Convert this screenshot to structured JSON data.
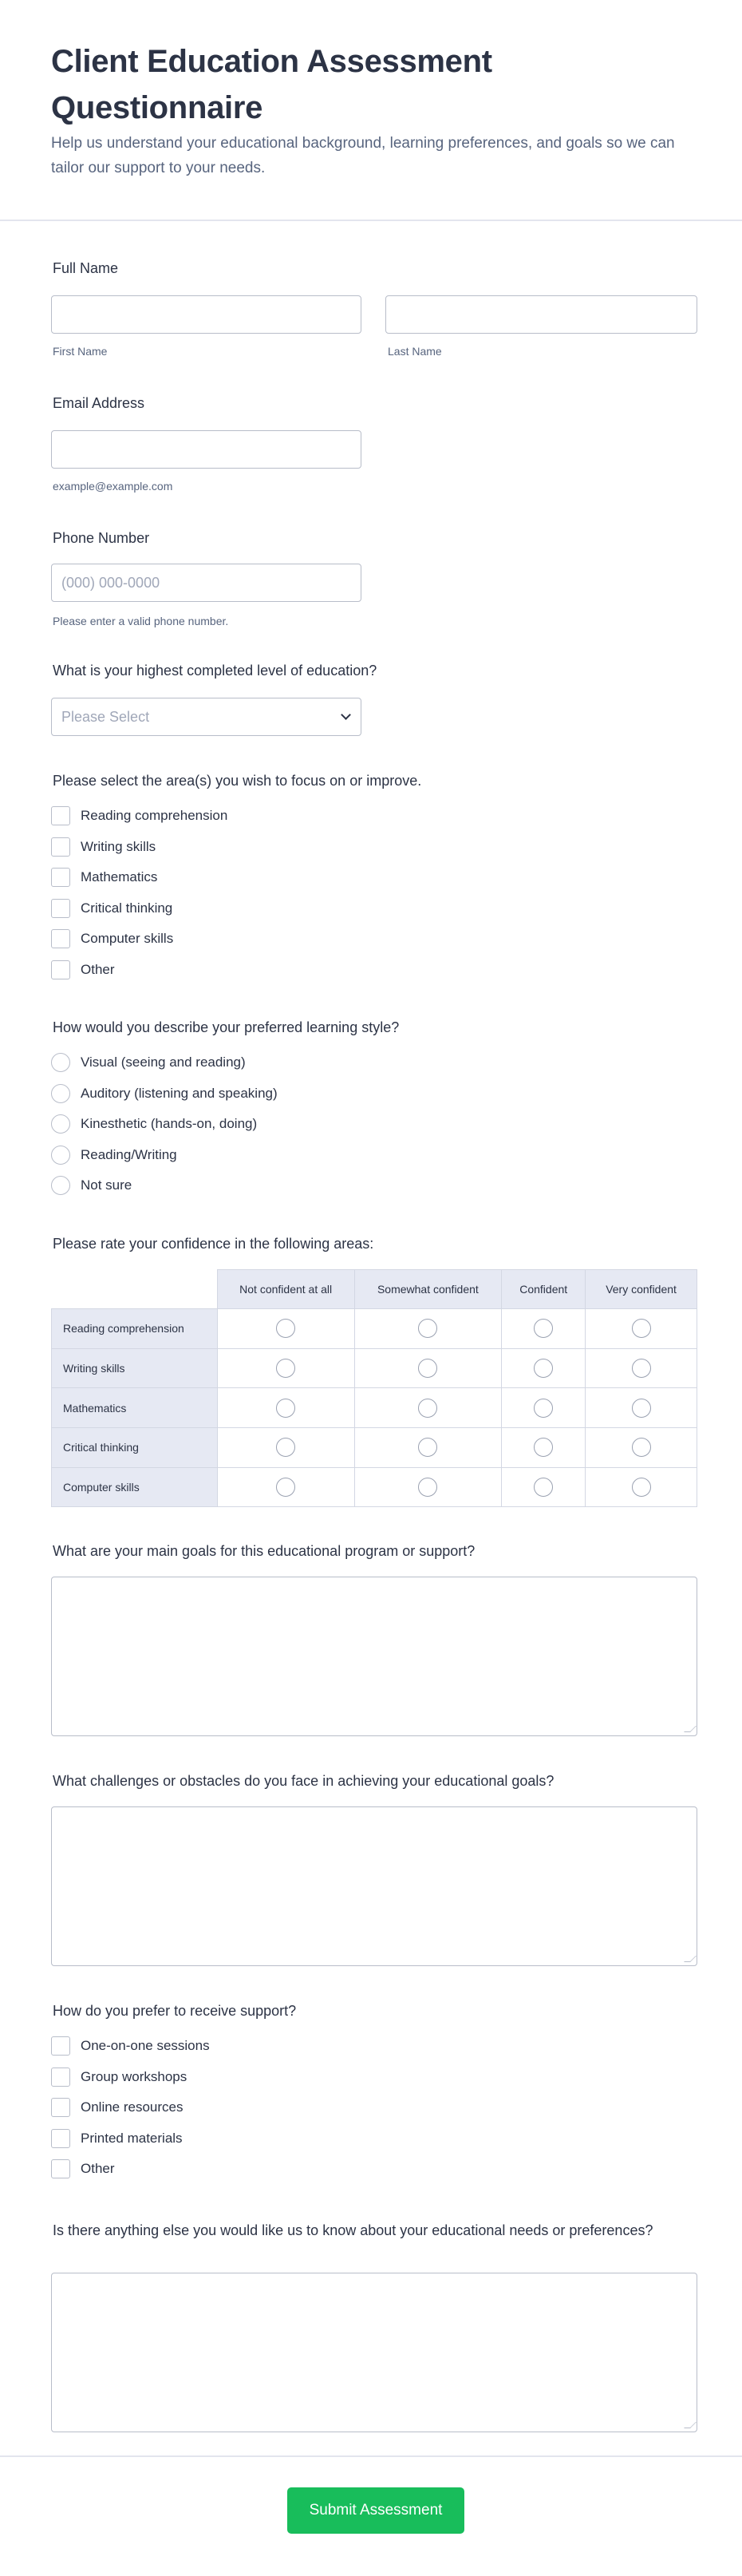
{
  "header": {
    "title": "Client Education Assessment Questionnaire",
    "subtitle": "Help us understand your educational background, learning preferences, and goals so we can tailor our support to your needs."
  },
  "full_name": {
    "label": "Full Name",
    "first_sublabel": "First Name",
    "last_sublabel": "Last Name",
    "first_value": "",
    "last_value": ""
  },
  "email": {
    "label": "Email Address",
    "sublabel": "example@example.com",
    "value": ""
  },
  "phone": {
    "label": "Phone Number",
    "placeholder": "(000) 000-0000",
    "sublabel": "Please enter a valid phone number."
  },
  "education": {
    "label": "What is your highest completed level of education?",
    "selected": "Please Select"
  },
  "focus": {
    "label": "Please select the area(s) you wish to focus on or improve.",
    "options": [
      "Reading comprehension",
      "Writing skills",
      "Mathematics",
      "Critical thinking",
      "Computer skills",
      "Other"
    ]
  },
  "learning_style": {
    "label": "How would you describe your preferred learning style?",
    "options": [
      "Visual (seeing and reading)",
      "Auditory (listening and speaking)",
      "Kinesthetic (hands-on, doing)",
      "Reading/Writing",
      "Not sure"
    ]
  },
  "confidence": {
    "label": "Please rate your confidence in the following areas:",
    "columns": [
      "Not confident at all",
      "Somewhat confident",
      "Confident",
      "Very confident"
    ],
    "rows": [
      "Reading comprehension",
      "Writing skills",
      "Mathematics",
      "Critical thinking",
      "Computer skills"
    ]
  },
  "goals": {
    "label": "What are your main goals for this educational program or support?",
    "value": ""
  },
  "challenges": {
    "label": "What challenges or obstacles do you face in achieving your educational goals?",
    "value": ""
  },
  "support": {
    "label": "How do you prefer to receive support?",
    "options": [
      "One-on-one sessions",
      "Group workshops",
      "Online resources",
      "Printed materials",
      "Other"
    ]
  },
  "other": {
    "label": "Is there anything else you would like us to know about your educational needs or preferences?",
    "value": ""
  },
  "submit": {
    "label": "Submit Assessment"
  },
  "colors": {
    "accent": "#18bd5b",
    "text": "#2c3345",
    "table_header": "#e6e9f3"
  }
}
